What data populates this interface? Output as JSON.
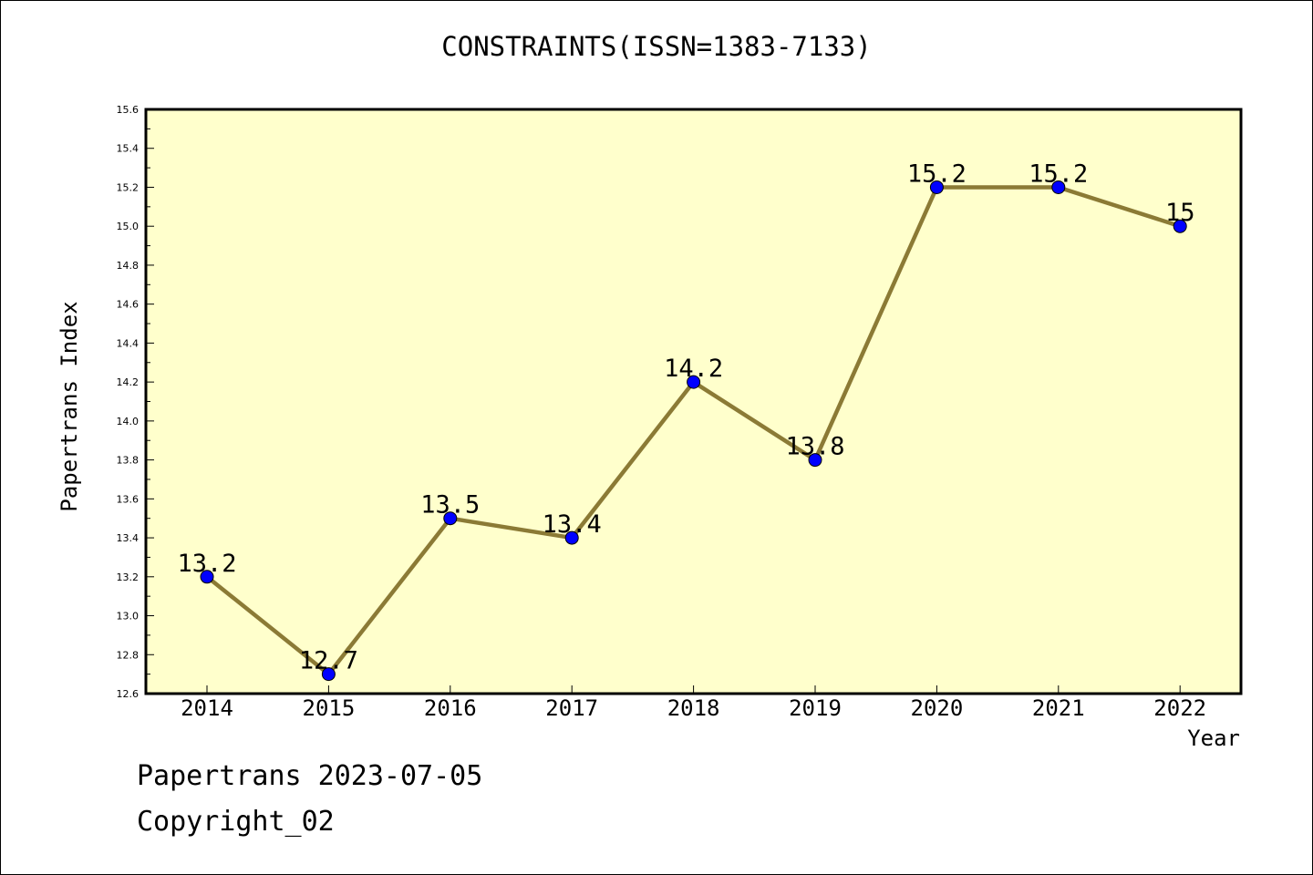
{
  "chart_data": {
    "type": "line",
    "title": "CONSTRAINTS(ISSN=1383-7133)",
    "xlabel": "Year",
    "ylabel": "Papertrans Index",
    "categories": [
      "2014",
      "2015",
      "2016",
      "2017",
      "2018",
      "2019",
      "2020",
      "2021",
      "2022"
    ],
    "series": [
      {
        "values": [
          13.2,
          12.7,
          13.5,
          13.4,
          14.2,
          13.8,
          15.2,
          15.2,
          15
        ],
        "data_labels": [
          "13.2",
          "12.7",
          "13.5",
          "13.4",
          "14.2",
          "13.8",
          "15.2",
          "15.2",
          "15"
        ]
      }
    ],
    "ylim": [
      12.6,
      15.6
    ],
    "yticks": [
      "12.6",
      "12.8",
      "13.0",
      "13.2",
      "13.4",
      "13.6",
      "13.8",
      "14.0",
      "14.2",
      "14.4",
      "14.6",
      "14.8",
      "15.0",
      "15.2",
      "15.4",
      "15.6"
    ],
    "grid": false,
    "colors": {
      "plot_background": "#ffffcc",
      "line": "#8b7a35",
      "marker": "#0000ff",
      "frame": "#000000"
    }
  },
  "footer": {
    "date_line": "Papertrans 2023-07-05",
    "copyright": "Copyright_02"
  }
}
